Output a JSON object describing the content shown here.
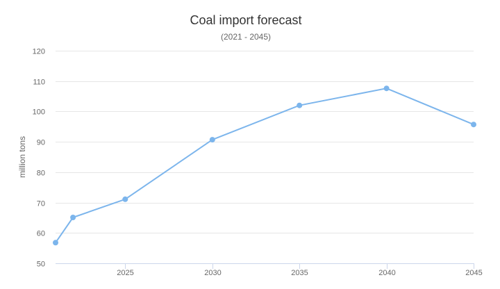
{
  "chart_data": {
    "type": "line",
    "title": "Coal import forecast",
    "subtitle": "(2021 - 2045)",
    "xlabel": "",
    "ylabel": "million tons",
    "x": [
      2021,
      2022,
      2025,
      2030,
      2035,
      2040,
      2045
    ],
    "series": [
      {
        "values": [
          56.8,
          65.1,
          71.1,
          90.7,
          102.0,
          107.6,
          95.7
        ],
        "color": "#7cb5ec"
      }
    ],
    "xticks": [
      2025,
      2030,
      2035,
      2040,
      2045
    ],
    "yticks": [
      50,
      60,
      70,
      80,
      90,
      100,
      110,
      120
    ],
    "xlim": [
      2021,
      2045
    ],
    "ylim": [
      50,
      120
    ],
    "grid": true,
    "legend": "none"
  }
}
